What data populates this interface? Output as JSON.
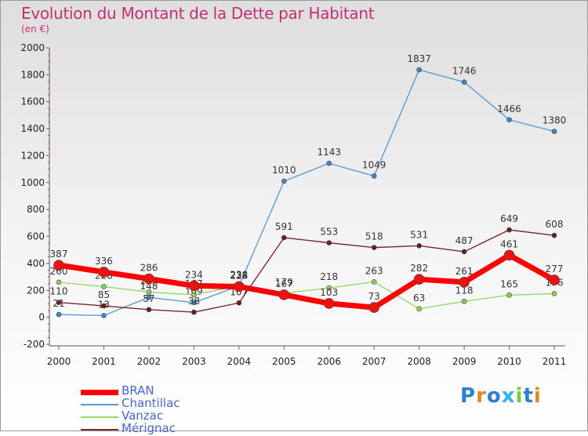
{
  "header": {
    "title": "Evolution du Montant de la Dette par Habitant",
    "subtitle": "(en €)"
  },
  "logo": {
    "text": "Proxiti"
  },
  "chart_data": {
    "type": "line",
    "title": "Evolution du Montant de la Dette par Habitant",
    "subtitle": "(en €)",
    "x": [
      "2000",
      "2001",
      "2002",
      "2003",
      "2004",
      "2005",
      "2006",
      "2007",
      "2008",
      "2009",
      "2010",
      "2011"
    ],
    "ylim": [
      -200,
      2000
    ],
    "yticks": [
      -200,
      0,
      200,
      400,
      600,
      800,
      1000,
      1200,
      1400,
      1600,
      1800,
      2000
    ],
    "grid": false,
    "legend": "bottom-left",
    "series": [
      {
        "name": "Chantillac",
        "color": "#5b9bd5",
        "dot": "#3f86c9",
        "width": 1.4,
        "values": [
          21,
          13,
          148,
          109,
          232,
          1010,
          1143,
          1049,
          1837,
          1746,
          1466,
          1380
        ],
        "labels": [
          "21",
          "13",
          "148",
          "109",
          "232",
          "1010",
          "1143",
          "1049",
          "1837",
          "1746",
          "1466",
          "1380"
        ]
      },
      {
        "name": "Vanzac",
        "color": "#99d86e",
        "dot": "#8bcf55",
        "width": 1.4,
        "values": [
          260,
          228,
          187,
          167,
          234,
          179,
          218,
          263,
          63,
          118,
          165,
          176
        ],
        "labels": [
          "260",
          "228",
          "187",
          "167",
          "234",
          "179",
          "218",
          "263",
          "63",
          "118",
          "165",
          "176"
        ]
      },
      {
        "name": "Mérignac",
        "color": "#7a2a2a",
        "dot": "#6a1e1e",
        "width": 1.4,
        "values": [
          110,
          85,
          57,
          38,
          107,
          591,
          553,
          518,
          531,
          487,
          649,
          608
        ],
        "labels": [
          "110",
          "85",
          "57",
          "38",
          "107",
          "591",
          "553",
          "518",
          "531",
          "487",
          "649",
          "608"
        ]
      },
      {
        "name": "BRAN",
        "color": "#ff0000",
        "dot": "#ee1111",
        "width": 7,
        "values": [
          387,
          336,
          286,
          234,
          228,
          167,
          103,
          73,
          282,
          261,
          461,
          277
        ],
        "labels": [
          "387",
          "336",
          "286",
          "234",
          "228",
          "167",
          "103",
          "73",
          "282",
          "261",
          "461",
          "277"
        ]
      }
    ]
  }
}
